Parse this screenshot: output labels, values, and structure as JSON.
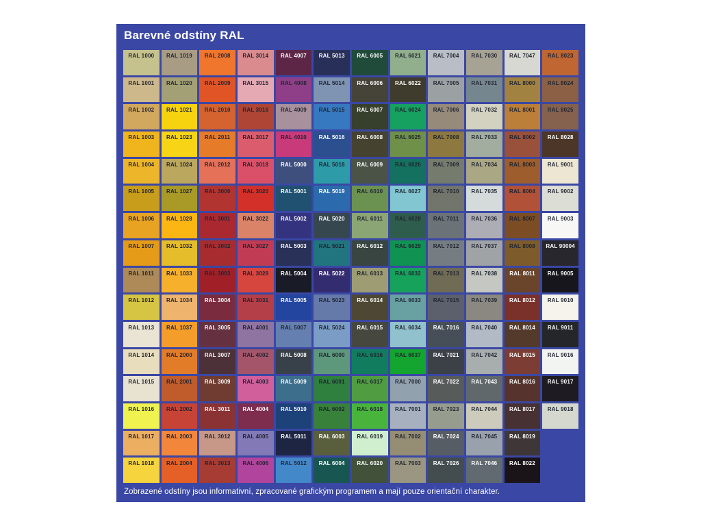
{
  "title": "Barevné odstíny RAL",
  "footer": "Zobrazené odstíny jsou informativní, zpracované grafickým programem a mají pouze orientační charakter.",
  "colors": {
    "page_bg": "#FFFFFF",
    "panel_bg": "#3A47A4",
    "title_text": "#FFFFFF",
    "footer_text": "#FFFFFF",
    "label_dark": "#1F2430",
    "label_light": "#FFFFFF"
  },
  "chart_data": {
    "type": "table",
    "title": "Barevné odstíny RAL",
    "note": "Zobrazené odstíny jsou informativní, zpracované grafickým programem a mají pouze orientační charakter.",
    "rows": 16,
    "columns": 12,
    "fill_order": "column-major",
    "empty_trailing_cells": 2,
    "cells": [
      {
        "code": "RAL 1000",
        "hex": "#C6C28E",
        "label": "dark"
      },
      {
        "code": "RAL 1001",
        "hex": "#CDB88C",
        "label": "dark"
      },
      {
        "code": "RAL 1002",
        "hex": "#D2A75E",
        "label": "dark"
      },
      {
        "code": "RAL 1003",
        "hex": "#F0B51C",
        "label": "dark"
      },
      {
        "code": "RAL 1004",
        "hex": "#EDB62A",
        "label": "dark"
      },
      {
        "code": "RAL 1005",
        "hex": "#C79D1B",
        "label": "dark"
      },
      {
        "code": "RAL 1006",
        "hex": "#E7A321",
        "label": "dark"
      },
      {
        "code": "RAL 1007",
        "hex": "#E59B17",
        "label": "dark"
      },
      {
        "code": "RAL 1011",
        "hex": "#AE8A58",
        "label": "dark"
      },
      {
        "code": "RAL 1012",
        "hex": "#D6C543",
        "label": "dark"
      },
      {
        "code": "RAL 1013",
        "hex": "#E9E4D4",
        "label": "dark"
      },
      {
        "code": "RAL 1014",
        "hex": "#E8DDBD",
        "label": "dark"
      },
      {
        "code": "RAL 1015",
        "hex": "#E8E2D1",
        "label": "dark"
      },
      {
        "code": "RAL 1016",
        "hex": "#EFF24F",
        "label": "dark"
      },
      {
        "code": "RAL 1017",
        "hex": "#ECAF62",
        "label": "dark"
      },
      {
        "code": "RAL 1018",
        "hex": "#F5D43D",
        "label": "dark"
      },
      {
        "code": "RAL 1019",
        "hex": "#A89C84",
        "label": "dark"
      },
      {
        "code": "RAL 1020",
        "hex": "#A4A075",
        "label": "dark"
      },
      {
        "code": "RAL 1021",
        "hex": "#F6D30E",
        "label": "dark"
      },
      {
        "code": "RAL 1023",
        "hex": "#F7D516",
        "label": "dark"
      },
      {
        "code": "RAL 1024",
        "hex": "#BCA75E",
        "label": "dark"
      },
      {
        "code": "RAL 1027",
        "hex": "#A99A28",
        "label": "dark"
      },
      {
        "code": "RAL 1028",
        "hex": "#FCB614",
        "label": "dark"
      },
      {
        "code": "RAL 1032",
        "hex": "#E5BC2A",
        "label": "dark"
      },
      {
        "code": "RAL 1033",
        "hex": "#F7B02C",
        "label": "dark"
      },
      {
        "code": "RAL 1034",
        "hex": "#EEB46E",
        "label": "dark"
      },
      {
        "code": "RAL 1037",
        "hex": "#F49D2A",
        "label": "dark"
      },
      {
        "code": "RAL 2000",
        "hex": "#E27C28",
        "label": "dark"
      },
      {
        "code": "RAL 2001",
        "hex": "#C05C2C",
        "label": "dark"
      },
      {
        "code": "RAL 2002",
        "hex": "#C74335",
        "label": "dark"
      },
      {
        "code": "RAL 2003",
        "hex": "#F2873C",
        "label": "dark"
      },
      {
        "code": "RAL 2004",
        "hex": "#E56026",
        "label": "dark"
      },
      {
        "code": "RAL 2008",
        "hex": "#F0762E",
        "label": "dark"
      },
      {
        "code": "RAL 2009",
        "hex": "#E05426",
        "label": "dark"
      },
      {
        "code": "RAL 2010",
        "hex": "#D4632F",
        "label": "dark"
      },
      {
        "code": "RAL 2011",
        "hex": "#E67B29",
        "label": "dark"
      },
      {
        "code": "RAL 2012",
        "hex": "#E47158",
        "label": "dark"
      },
      {
        "code": "RAL 3000",
        "hex": "#B23431",
        "label": "dark"
      },
      {
        "code": "RAL 3001",
        "hex": "#AA2931",
        "label": "dark"
      },
      {
        "code": "RAL 3002",
        "hex": "#A72C2F",
        "label": "dark"
      },
      {
        "code": "RAL 3003",
        "hex": "#A12028",
        "label": "dark"
      },
      {
        "code": "RAL 3004",
        "hex": "#7B2B3E",
        "label": "light"
      },
      {
        "code": "RAL 3005",
        "hex": "#653140",
        "label": "light"
      },
      {
        "code": "RAL 3007",
        "hex": "#4D3139",
        "label": "light"
      },
      {
        "code": "RAL 3009",
        "hex": "#703B30",
        "label": "light"
      },
      {
        "code": "RAL 3011",
        "hex": "#8B3334",
        "label": "light"
      },
      {
        "code": "RAL 3012",
        "hex": "#C79787",
        "label": "dark"
      },
      {
        "code": "RAL 3013",
        "hex": "#A63C33",
        "label": "dark"
      },
      {
        "code": "RAL 3014",
        "hex": "#DA8B8E",
        "label": "dark"
      },
      {
        "code": "RAL 3015",
        "hex": "#E5A9B4",
        "label": "dark"
      },
      {
        "code": "RAL 3016",
        "hex": "#AE4535",
        "label": "dark"
      },
      {
        "code": "RAL 3017",
        "hex": "#DB5C6C",
        "label": "dark"
      },
      {
        "code": "RAL 3018",
        "hex": "#DA5068",
        "label": "dark"
      },
      {
        "code": "RAL 3020",
        "hex": "#D33029",
        "label": "dark"
      },
      {
        "code": "RAL 3022",
        "hex": "#DB8368",
        "label": "dark"
      },
      {
        "code": "RAL 3027",
        "hex": "#C23B54",
        "label": "dark"
      },
      {
        "code": "RAL 3028",
        "hex": "#D7453F",
        "label": "dark"
      },
      {
        "code": "RAL 3031",
        "hex": "#B53F49",
        "label": "dark"
      },
      {
        "code": "RAL 4001",
        "hex": "#8F74A2",
        "label": "dark"
      },
      {
        "code": "RAL 4002",
        "hex": "#A4556A",
        "label": "dark"
      },
      {
        "code": "RAL 4003",
        "hex": "#D05F9C",
        "label": "dark"
      },
      {
        "code": "RAL 4004",
        "hex": "#7F2D4E",
        "label": "light"
      },
      {
        "code": "RAL 4005",
        "hex": "#8279B6",
        "label": "dark"
      },
      {
        "code": "RAL 4006",
        "hex": "#B1449C",
        "label": "dark"
      },
      {
        "code": "RAL 4007",
        "hex": "#5D2647",
        "label": "light"
      },
      {
        "code": "RAL 4008",
        "hex": "#8F3F87",
        "label": "dark"
      },
      {
        "code": "RAL 4009",
        "hex": "#A8909C",
        "label": "dark"
      },
      {
        "code": "RAL 4010",
        "hex": "#C93A7A",
        "label": "dark"
      },
      {
        "code": "RAL 5000",
        "hex": "#3E4F7E",
        "label": "light"
      },
      {
        "code": "RAL 5001",
        "hex": "#215170",
        "label": "light"
      },
      {
        "code": "RAL 5002",
        "hex": "#33337F",
        "label": "light"
      },
      {
        "code": "RAL 5003",
        "hex": "#293158",
        "label": "light"
      },
      {
        "code": "RAL 5004",
        "hex": "#191C26",
        "label": "light"
      },
      {
        "code": "RAL 5005",
        "hex": "#24459F",
        "label": "light"
      },
      {
        "code": "RAL 5007",
        "hex": "#6580B0",
        "label": "dark"
      },
      {
        "code": "RAL 5008",
        "hex": "#384049",
        "label": "light"
      },
      {
        "code": "RAL 5009",
        "hex": "#3D6F8D",
        "label": "light"
      },
      {
        "code": "RAL 5010",
        "hex": "#1D4179",
        "label": "light"
      },
      {
        "code": "RAL 5011",
        "hex": "#1D2543",
        "label": "light"
      },
      {
        "code": "RAL 5012",
        "hex": "#4389CA",
        "label": "dark"
      },
      {
        "code": "RAL 5013",
        "hex": "#282F59",
        "label": "light"
      },
      {
        "code": "RAL 5014",
        "hex": "#7F93B2",
        "label": "dark"
      },
      {
        "code": "RAL 5015",
        "hex": "#3679C0",
        "label": "dark"
      },
      {
        "code": "RAL 5016",
        "hex": "#2C4F90",
        "label": "light"
      },
      {
        "code": "RAL 5018",
        "hex": "#2E9BA8",
        "label": "dark"
      },
      {
        "code": "RAL 5019",
        "hex": "#2B6BAD",
        "label": "light"
      },
      {
        "code": "RAL 5020",
        "hex": "#374750",
        "label": "light"
      },
      {
        "code": "RAL 5021",
        "hex": "#20757F",
        "label": "dark"
      },
      {
        "code": "RAL 5022",
        "hex": "#342C70",
        "label": "light"
      },
      {
        "code": "RAL 5023",
        "hex": "#667AAA",
        "label": "dark"
      },
      {
        "code": "RAL 5024",
        "hex": "#7B9DC5",
        "label": "dark"
      },
      {
        "code": "RAL 6000",
        "hex": "#5D977C",
        "label": "dark"
      },
      {
        "code": "RAL 6001",
        "hex": "#2F7F3F",
        "label": "dark"
      },
      {
        "code": "RAL 6002",
        "hex": "#37813A",
        "label": "dark"
      },
      {
        "code": "RAL 6003",
        "hex": "#595F3D",
        "label": "light"
      },
      {
        "code": "RAL 6004",
        "hex": "#185751",
        "label": "light"
      },
      {
        "code": "RAL 6005",
        "hex": "#204B3B",
        "label": "light"
      },
      {
        "code": "RAL 6006",
        "hex": "#464339",
        "label": "light"
      },
      {
        "code": "RAL 6007",
        "hex": "#373F2D",
        "label": "light"
      },
      {
        "code": "RAL 6008",
        "hex": "#454230",
        "label": "light"
      },
      {
        "code": "RAL 6009",
        "hex": "#4B5347",
        "label": "light"
      },
      {
        "code": "RAL 6010",
        "hex": "#6B9251",
        "label": "dark"
      },
      {
        "code": "RAL 6011",
        "hex": "#8BA574",
        "label": "dark"
      },
      {
        "code": "RAL 6012",
        "hex": "#394541",
        "label": "light"
      },
      {
        "code": "RAL 6013",
        "hex": "#9D9C72",
        "label": "dark"
      },
      {
        "code": "RAL 6014",
        "hex": "#4D4733",
        "label": "light"
      },
      {
        "code": "RAL 6015",
        "hex": "#46473F",
        "label": "light"
      },
      {
        "code": "RAL 6016",
        "hex": "#117D5E",
        "label": "dark"
      },
      {
        "code": "RAL 6017",
        "hex": "#509D41",
        "label": "dark"
      },
      {
        "code": "RAL 6018",
        "hex": "#49B43C",
        "label": "dark"
      },
      {
        "code": "RAL 6019",
        "hex": "#D0EFCE",
        "label": "dark"
      },
      {
        "code": "RAL 6020",
        "hex": "#41513A",
        "label": "light"
      },
      {
        "code": "RAL 6021",
        "hex": "#91AF8D",
        "label": "dark"
      },
      {
        "code": "RAL 6022",
        "hex": "#403C2D",
        "label": "light"
      },
      {
        "code": "RAL 6024",
        "hex": "#16A160",
        "label": "dark"
      },
      {
        "code": "RAL 6025",
        "hex": "#6E9049",
        "label": "dark"
      },
      {
        "code": "RAL 6026",
        "hex": "#15715F",
        "label": "dark"
      },
      {
        "code": "RAL 6027",
        "hex": "#81C6D0",
        "label": "dark"
      },
      {
        "code": "RAL 6028",
        "hex": "#2F5D4D",
        "label": "dark"
      },
      {
        "code": "RAL 6029",
        "hex": "#0F9252",
        "label": "dark"
      },
      {
        "code": "RAL 6032",
        "hex": "#17A25C",
        "label": "dark"
      },
      {
        "code": "RAL 6033",
        "hex": "#69A1A2",
        "label": "dark"
      },
      {
        "code": "RAL 6034",
        "hex": "#91C1CC",
        "label": "dark"
      },
      {
        "code": "RAL 6037",
        "hex": "#13A52F",
        "label": "dark"
      },
      {
        "code": "RAL 7000",
        "hex": "#92A1AE",
        "label": "dark"
      },
      {
        "code": "RAL 7001",
        "hex": "#A6B0BE",
        "label": "dark"
      },
      {
        "code": "RAL 7002",
        "hex": "#958D74",
        "label": "dark"
      },
      {
        "code": "RAL 7003",
        "hex": "#9A9681",
        "label": "dark"
      },
      {
        "code": "RAL 7004",
        "hex": "#B9BDC5",
        "label": "dark"
      },
      {
        "code": "RAL 7005",
        "hex": "#9BA1A3",
        "label": "dark"
      },
      {
        "code": "RAL 7006",
        "hex": "#968A7B",
        "label": "dark"
      },
      {
        "code": "RAL 7008",
        "hex": "#8D793F",
        "label": "dark"
      },
      {
        "code": "RAL 7009",
        "hex": "#757B6D",
        "label": "dark"
      },
      {
        "code": "RAL 7010",
        "hex": "#71756B",
        "label": "dark"
      },
      {
        "code": "RAL 7011",
        "hex": "#6B7379",
        "label": "dark"
      },
      {
        "code": "RAL 7012",
        "hex": "#767D82",
        "label": "dark"
      },
      {
        "code": "RAL 7013",
        "hex": "#6F6B55",
        "label": "dark"
      },
      {
        "code": "RAL 7015",
        "hex": "#5B606C",
        "label": "dark"
      },
      {
        "code": "RAL 7016",
        "hex": "#464E58",
        "label": "light"
      },
      {
        "code": "RAL 7021",
        "hex": "#3B4147",
        "label": "light"
      },
      {
        "code": "RAL 7022",
        "hex": "#575B59",
        "label": "light"
      },
      {
        "code": "RAL 7023",
        "hex": "#969D8F",
        "label": "dark"
      },
      {
        "code": "RAL 7024",
        "hex": "#565D64",
        "label": "light"
      },
      {
        "code": "RAL 7026",
        "hex": "#434D50",
        "label": "light"
      },
      {
        "code": "RAL 7030",
        "hex": "#A7A394",
        "label": "dark"
      },
      {
        "code": "RAL 7031",
        "hex": "#76868F",
        "label": "dark"
      },
      {
        "code": "RAL 7032",
        "hex": "#D3D2C1",
        "label": "dark"
      },
      {
        "code": "RAL 7033",
        "hex": "#A3AD9F",
        "label": "dark"
      },
      {
        "code": "RAL 7034",
        "hex": "#AAA785",
        "label": "dark"
      },
      {
        "code": "RAL 7035",
        "hex": "#D5DBDB",
        "label": "dark"
      },
      {
        "code": "RAL 7036",
        "hex": "#ADADB5",
        "label": "dark"
      },
      {
        "code": "RAL 7037",
        "hex": "#9FA3A5",
        "label": "dark"
      },
      {
        "code": "RAL 7038",
        "hex": "#C5C7C3",
        "label": "dark"
      },
      {
        "code": "RAL 7039",
        "hex": "#8A8880",
        "label": "dark"
      },
      {
        "code": "RAL 7040",
        "hex": "#B2BAC5",
        "label": "dark"
      },
      {
        "code": "RAL 7042",
        "hex": "#A8ADAD",
        "label": "dark"
      },
      {
        "code": "RAL 7043",
        "hex": "#61686B",
        "label": "light"
      },
      {
        "code": "RAL 7044",
        "hex": "#CCCBBC",
        "label": "dark"
      },
      {
        "code": "RAL 7045",
        "hex": "#99A2AC",
        "label": "dark"
      },
      {
        "code": "RAL 7046",
        "hex": "#606A70",
        "label": "light"
      },
      {
        "code": "RAL 7047",
        "hex": "#D7D8D1",
        "label": "dark"
      },
      {
        "code": "RAL 8000",
        "hex": "#A18240",
        "label": "dark"
      },
      {
        "code": "RAL 8001",
        "hex": "#BC7F39",
        "label": "dark"
      },
      {
        "code": "RAL 8002",
        "hex": "#9A513B",
        "label": "dark"
      },
      {
        "code": "RAL 8003",
        "hex": "#9D5D2D",
        "label": "dark"
      },
      {
        "code": "RAL 8004",
        "hex": "#B05138",
        "label": "dark"
      },
      {
        "code": "RAL 8007",
        "hex": "#7C4D25",
        "label": "dark"
      },
      {
        "code": "RAL 8008",
        "hex": "#7E5B2A",
        "label": "dark"
      },
      {
        "code": "RAL 8011",
        "hex": "#6A442B",
        "label": "light"
      },
      {
        "code": "RAL 8012",
        "hex": "#7A312A",
        "label": "light"
      },
      {
        "code": "RAL 8014",
        "hex": "#533A2B",
        "label": "light"
      },
      {
        "code": "RAL 8015",
        "hex": "#7B3D34",
        "label": "light"
      },
      {
        "code": "RAL 8016",
        "hex": "#56342D",
        "label": "light"
      },
      {
        "code": "RAL 8017",
        "hex": "#473132",
        "label": "light"
      },
      {
        "code": "RAL 8019",
        "hex": "#3F3737",
        "label": "light"
      },
      {
        "code": "RAL 8022",
        "hex": "#1A1418",
        "label": "light"
      },
      {
        "code": "RAL 8023",
        "hex": "#C06633",
        "label": "dark"
      },
      {
        "code": "RAL 8024",
        "hex": "#8B6044",
        "label": "dark"
      },
      {
        "code": "RAL 8025",
        "hex": "#85624D",
        "label": "dark"
      },
      {
        "code": "RAL 8028",
        "hex": "#4B3627",
        "label": "light"
      },
      {
        "code": "RAL 9001",
        "hex": "#EDE6D3",
        "label": "dark"
      },
      {
        "code": "RAL 9002",
        "hex": "#DCDDD4",
        "label": "dark"
      },
      {
        "code": "RAL 9003",
        "hex": "#F7F8F5",
        "label": "dark"
      },
      {
        "code": "RAL 90004",
        "hex": "#27272D",
        "label": "light"
      },
      {
        "code": "RAL 9005",
        "hex": "#16161C",
        "label": "light"
      },
      {
        "code": "RAL 9010",
        "hex": "#F5F3EB",
        "label": "dark"
      },
      {
        "code": "RAL 9011",
        "hex": "#24262A",
        "label": "light"
      },
      {
        "code": "RAL 9016",
        "hex": "#F2F4F1",
        "label": "dark"
      },
      {
        "code": "RAL 9017",
        "hex": "#1E1C22",
        "label": "light"
      },
      {
        "code": "RAL 9018",
        "hex": "#D4D8CF",
        "label": "dark"
      }
    ]
  }
}
